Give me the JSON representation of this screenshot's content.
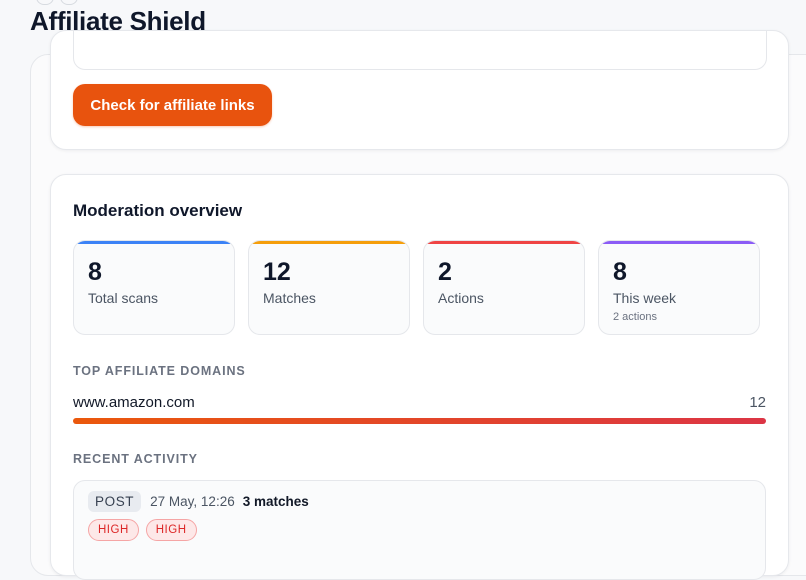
{
  "app": {
    "title": "Affiliate Shield"
  },
  "check": {
    "button_label": "Check for affiliate links"
  },
  "overview": {
    "title": "Moderation overview",
    "stats": [
      {
        "value": "8",
        "label": "Total scans",
        "accent": "#3b82f6"
      },
      {
        "value": "12",
        "label": "Matches",
        "accent": "#f59e0b"
      },
      {
        "value": "2",
        "label": "Actions",
        "accent": "#ef4444"
      },
      {
        "value": "8",
        "label": "This week",
        "sub": "2 actions",
        "accent": "#8b5cf6"
      }
    ],
    "top_domains_heading": "TOP AFFILIATE DOMAINS",
    "domains": [
      {
        "name": "www.amazon.com",
        "count": "12",
        "share": 1.0
      }
    ],
    "recent_heading": "RECENT ACTIVITY",
    "activity": [
      {
        "type": "POST",
        "time": "27 May, 12:26",
        "matches": "3 matches",
        "severities": [
          "HIGH",
          "HIGH"
        ]
      }
    ]
  },
  "colors": {
    "brand_orange": "#e8530e",
    "severity_high": "#dc2626",
    "bar_gradient_start": "#ea580c",
    "bar_gradient_end": "#dc3545"
  }
}
